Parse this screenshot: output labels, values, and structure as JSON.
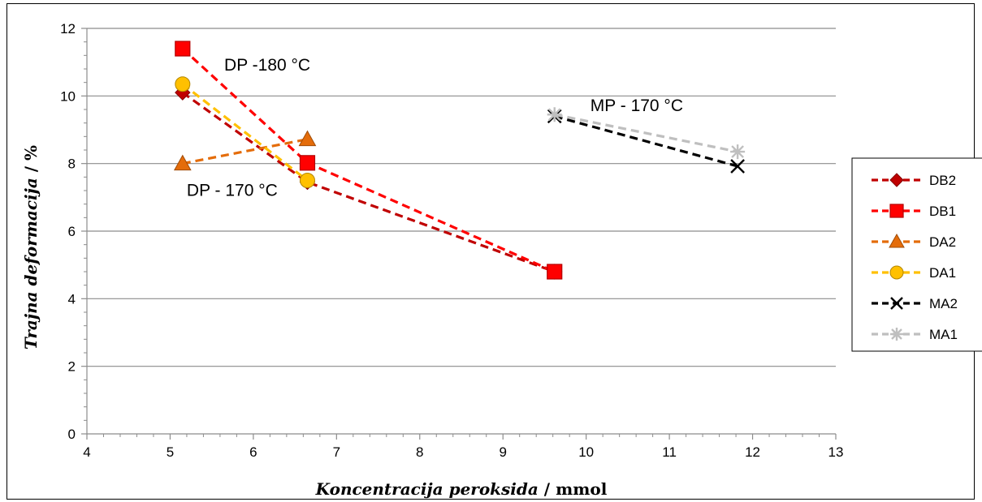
{
  "chart_data": {
    "type": "line",
    "xlabel_italic": "Koncentracija peroksida",
    "xlabel_unit": " / mmol",
    "ylabel_italic": "Trajna deformacija",
    "ylabel_unit": " / %",
    "xlim": [
      4,
      13
    ],
    "ylim": [
      0,
      12
    ],
    "xticks": [
      4,
      5,
      6,
      7,
      8,
      9,
      10,
      11,
      12,
      13
    ],
    "yticks": [
      0,
      2,
      4,
      6,
      8,
      10,
      12
    ],
    "grid": "horizontal",
    "legend_position": "right",
    "series": [
      {
        "name": "DB2",
        "color": "#C00000",
        "marker": "diamond",
        "points": [
          {
            "x": 5.15,
            "y": 10.1
          },
          {
            "x": 6.65,
            "y": 7.45
          },
          {
            "x": 9.62,
            "y": 4.8
          }
        ]
      },
      {
        "name": "DB1",
        "color": "#FF0000",
        "marker": "square",
        "points": [
          {
            "x": 5.15,
            "y": 11.4
          },
          {
            "x": 6.65,
            "y": 8.02
          },
          {
            "x": 9.62,
            "y": 4.8
          }
        ]
      },
      {
        "name": "DA2",
        "color": "#E46C0A",
        "marker": "triangle",
        "points": [
          {
            "x": 5.15,
            "y": 8.0
          },
          {
            "x": 6.65,
            "y": 8.72
          }
        ]
      },
      {
        "name": "DA1",
        "color": "#FFC000",
        "marker": "circle",
        "points": [
          {
            "x": 5.15,
            "y": 10.35
          },
          {
            "x": 6.65,
            "y": 7.5
          }
        ]
      },
      {
        "name": "MA2",
        "color": "#000000",
        "marker": "x",
        "points": [
          {
            "x": 9.62,
            "y": 9.4
          },
          {
            "x": 11.82,
            "y": 7.92
          }
        ]
      },
      {
        "name": "MA1",
        "color": "#BFBFBF",
        "marker": "star",
        "points": [
          {
            "x": 9.62,
            "y": 9.45
          },
          {
            "x": 11.82,
            "y": 8.35
          }
        ]
      }
    ],
    "annotations": [
      {
        "text": "DP -180 °C",
        "x": 5.65,
        "y": 10.75
      },
      {
        "text": "MP - 170 °C",
        "x": 10.05,
        "y": 9.55
      },
      {
        "text": "DP - 170 °C",
        "x": 5.2,
        "y": 7.05
      }
    ]
  }
}
